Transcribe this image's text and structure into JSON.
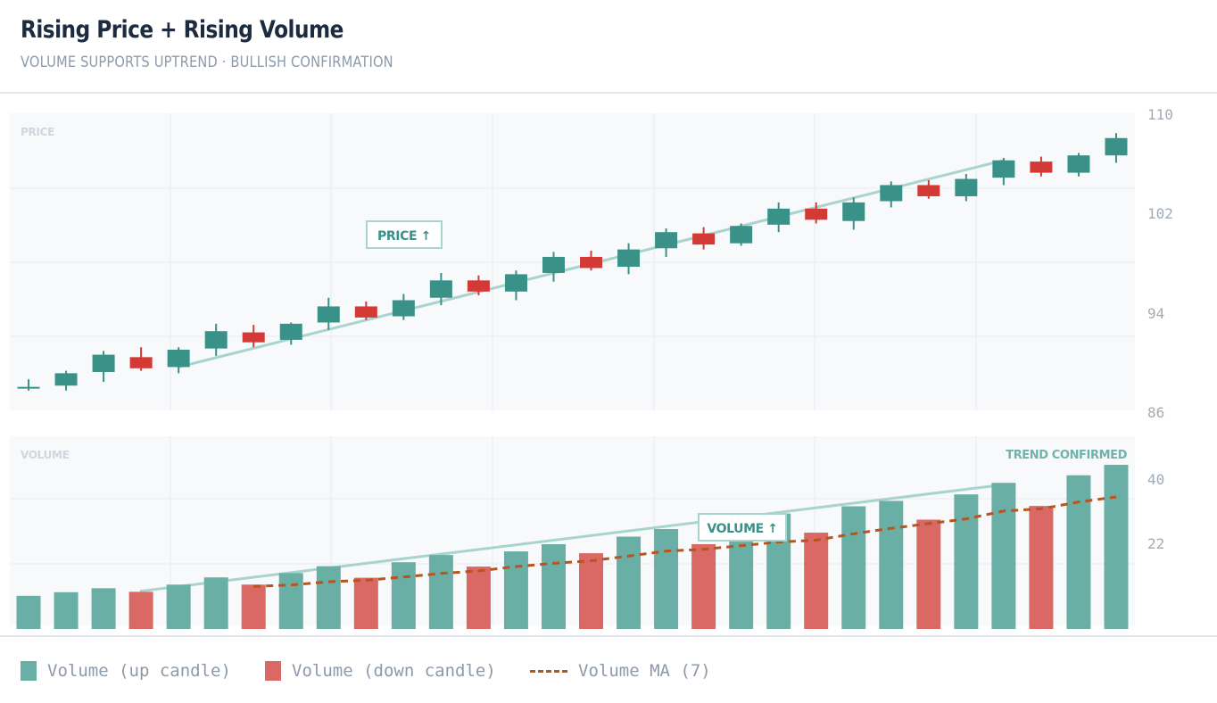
{
  "header": {
    "title": "Rising Price + Rising Volume",
    "subtitle": "VOLUME SUPPORTS UPTREND · BULLISH CONFIRMATION"
  },
  "colors": {
    "up": "#3a9188",
    "down": "#d33a35",
    "volume_up": "#6aafa6",
    "volume_down": "#da6965",
    "ma": "#b8541c",
    "trendline": "#a9d4ce",
    "panel_bg": "#f8f9fb",
    "grid": "#e9ecf0",
    "axis_text": "#a0abb8"
  },
  "legend": {
    "items": [
      {
        "label": "Volume (up candle)",
        "swatch": "volume-up"
      },
      {
        "label": "Volume (down candle)",
        "swatch": "volume-down"
      },
      {
        "label": "Volume MA (7)",
        "swatch": "ma-dash"
      }
    ]
  },
  "chart_data": [
    {
      "type": "candlestick",
      "panel_label": "PRICE",
      "annotation": "PRICE ↑",
      "y_ticks": [
        110,
        102,
        94,
        86
      ],
      "ylim": [
        86,
        110
      ],
      "candles": [
        {
          "o": 87.8,
          "h": 88.5,
          "l": 87.6,
          "c": 87.9
        },
        {
          "o": 88.0,
          "h": 89.2,
          "l": 87.6,
          "c": 89.0
        },
        {
          "o": 89.1,
          "h": 90.8,
          "l": 88.3,
          "c": 90.5
        },
        {
          "o": 90.3,
          "h": 91.1,
          "l": 89.2,
          "c": 89.4
        },
        {
          "o": 89.5,
          "h": 91.1,
          "l": 89.0,
          "c": 90.9
        },
        {
          "o": 91.0,
          "h": 93.0,
          "l": 90.4,
          "c": 92.4
        },
        {
          "o": 92.3,
          "h": 92.9,
          "l": 91.1,
          "c": 91.5
        },
        {
          "o": 91.7,
          "h": 93.1,
          "l": 91.3,
          "c": 93.0
        },
        {
          "o": 93.1,
          "h": 95.1,
          "l": 92.5,
          "c": 94.4
        },
        {
          "o": 94.4,
          "h": 94.8,
          "l": 93.3,
          "c": 93.5
        },
        {
          "o": 93.6,
          "h": 95.4,
          "l": 93.3,
          "c": 94.9
        },
        {
          "o": 95.1,
          "h": 97.1,
          "l": 94.5,
          "c": 96.5
        },
        {
          "o": 96.5,
          "h": 96.9,
          "l": 95.3,
          "c": 95.6
        },
        {
          "o": 95.6,
          "h": 97.3,
          "l": 94.9,
          "c": 97.0
        },
        {
          "o": 97.1,
          "h": 98.8,
          "l": 96.4,
          "c": 98.4
        },
        {
          "o": 98.4,
          "h": 98.9,
          "l": 97.3,
          "c": 97.5
        },
        {
          "o": 97.6,
          "h": 99.5,
          "l": 97.0,
          "c": 99.0
        },
        {
          "o": 99.1,
          "h": 100.7,
          "l": 98.4,
          "c": 100.4
        },
        {
          "o": 100.3,
          "h": 100.8,
          "l": 99.0,
          "c": 99.4
        },
        {
          "o": 99.5,
          "h": 101.1,
          "l": 99.3,
          "c": 100.9
        },
        {
          "o": 101.0,
          "h": 102.8,
          "l": 100.4,
          "c": 102.3
        },
        {
          "o": 102.3,
          "h": 102.8,
          "l": 101.1,
          "c": 101.4
        },
        {
          "o": 101.3,
          "h": 103.2,
          "l": 100.6,
          "c": 102.8
        },
        {
          "o": 102.9,
          "h": 104.5,
          "l": 102.4,
          "c": 104.2
        },
        {
          "o": 104.2,
          "h": 104.6,
          "l": 103.1,
          "c": 103.3
        },
        {
          "o": 103.3,
          "h": 105.1,
          "l": 102.9,
          "c": 104.7
        },
        {
          "o": 104.8,
          "h": 106.4,
          "l": 104.2,
          "c": 106.2
        },
        {
          "o": 106.1,
          "h": 106.5,
          "l": 104.9,
          "c": 105.2
        },
        {
          "o": 105.2,
          "h": 106.8,
          "l": 104.9,
          "c": 106.6
        },
        {
          "o": 106.6,
          "h": 108.4,
          "l": 106.0,
          "c": 108.0
        }
      ],
      "trendline": {
        "from": [
          4,
          89.5
        ],
        "to": [
          26,
          106.2
        ]
      }
    },
    {
      "type": "bar",
      "panel_label": "VOLUME",
      "annotation": "VOLUME ↑",
      "badge": "TREND CONFIRMED",
      "y_ticks": [
        40,
        22
      ],
      "ylim": [
        0,
        44.5
      ],
      "values": [
        8.2,
        9.2,
        10.3,
        9.3,
        11.3,
        13.3,
        11.3,
        14.5,
        16.4,
        13.2,
        17.5,
        19.5,
        16.3,
        20.5,
        22.5,
        20.0,
        24.6,
        26.7,
        22.5,
        29.0,
        31.0,
        25.7,
        33.0,
        34.5,
        29.3,
        36.3,
        39.5,
        33.1,
        41.6,
        44.5
      ],
      "series": [
        {
          "name": "Volume MA (7)",
          "values": [
            null,
            null,
            null,
            null,
            null,
            null,
            10.8,
            11.2,
            12.1,
            12.5,
            13.4,
            14.4,
            15.1,
            16.3,
            17.2,
            17.9,
            19.2,
            20.6,
            21.1,
            22.1,
            23.1,
            23.6,
            25.4,
            26.9,
            28.2,
            29.5,
            31.7,
            32.3,
            34.2,
            35.6
          ]
        }
      ],
      "trendline": {
        "from": [
          3,
          9.5
        ],
        "to": [
          26,
          39.0
        ]
      }
    }
  ]
}
